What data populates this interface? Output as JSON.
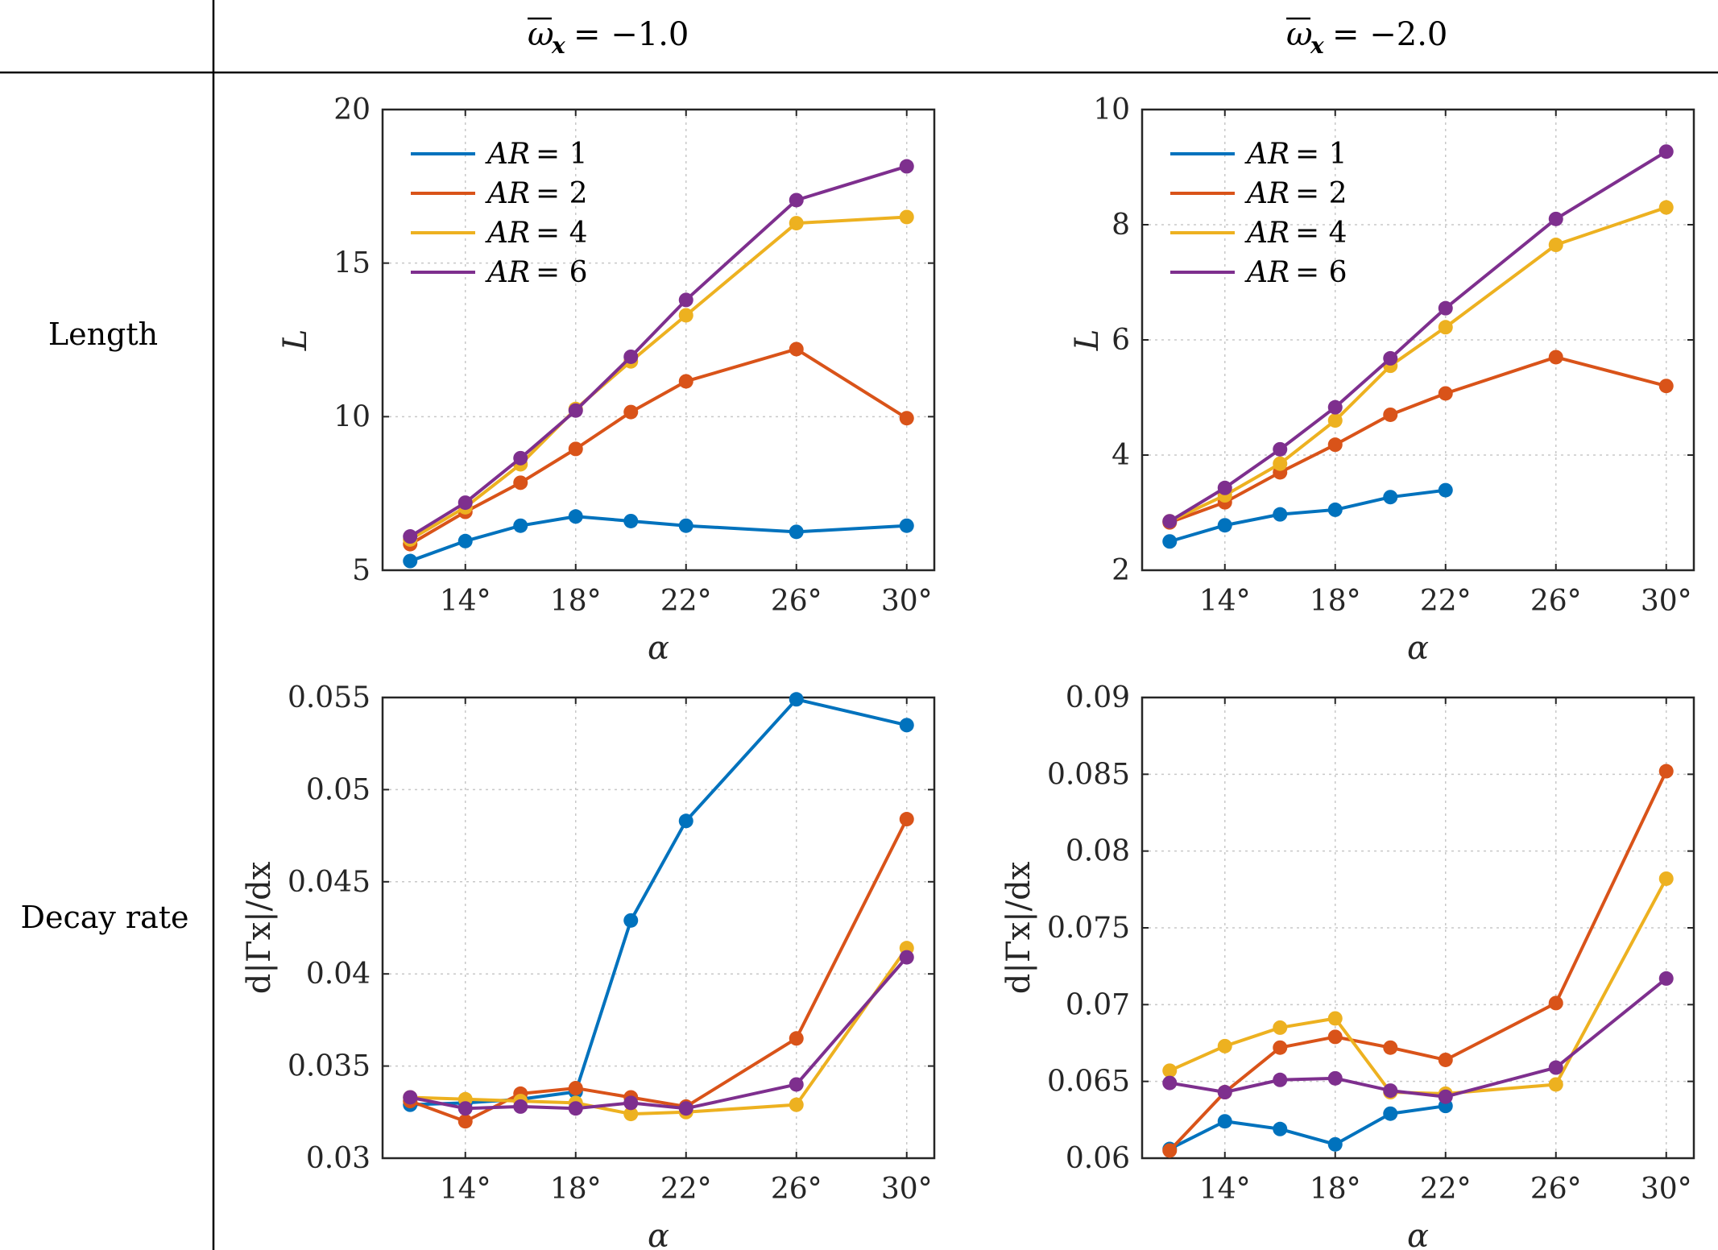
{
  "table": {
    "col_headers": [
      {
        "omega_symbol": "ω",
        "subscript": "x",
        "eq_value": "= −1.0"
      },
      {
        "omega_symbol": "ω",
        "subscript": "x",
        "eq_value": "= −2.0"
      }
    ],
    "row_headers": [
      "Length",
      "Decay rate"
    ]
  },
  "colors": {
    "AR = 1": "#0072BD",
    "AR = 2": "#D95319",
    "AR = 4": "#EDB120",
    "AR = 6": "#7E2F8E"
  },
  "chart_data": [
    {
      "id": "length_w1",
      "type": "line",
      "title": "",
      "xlabel": "α",
      "ylabel": "L",
      "xlim": [
        11,
        31
      ],
      "ylim": [
        5,
        20
      ],
      "xticks": [
        14,
        18,
        22,
        26,
        30
      ],
      "xtick_labels": [
        "14°",
        "18°",
        "22°",
        "26°",
        "30°"
      ],
      "yticks": [
        5,
        10,
        15,
        20
      ],
      "ytick_labels": [
        "5",
        "10",
        "15",
        "20"
      ],
      "legend": "top-left",
      "grid": true,
      "series": [
        {
          "name": "AR = 1",
          "label_lhs": "AR",
          "label_rhs": "= 1",
          "x": [
            12,
            14,
            16,
            18,
            20,
            22,
            26,
            30
          ],
          "values": [
            5.3,
            5.95,
            6.45,
            6.75,
            6.6,
            6.45,
            6.25,
            6.45
          ]
        },
        {
          "name": "AR = 2",
          "label_lhs": "AR",
          "label_rhs": "= 2",
          "x": [
            12,
            14,
            16,
            18,
            20,
            22,
            26,
            30
          ],
          "values": [
            5.85,
            6.9,
            7.85,
            8.95,
            10.15,
            11.15,
            12.2,
            9.95
          ]
        },
        {
          "name": "AR = 4",
          "label_lhs": "AR",
          "label_rhs": "= 4",
          "x": [
            12,
            14,
            16,
            18,
            20,
            22,
            26,
            30
          ],
          "values": [
            6.0,
            7.05,
            8.45,
            10.25,
            11.8,
            13.3,
            16.3,
            16.5
          ]
        },
        {
          "name": "AR = 6",
          "label_lhs": "AR",
          "label_rhs": "= 6",
          "x": [
            12,
            14,
            16,
            18,
            20,
            22,
            26,
            30
          ],
          "values": [
            6.1,
            7.2,
            8.65,
            10.2,
            11.95,
            13.8,
            17.05,
            18.15
          ]
        }
      ]
    },
    {
      "id": "length_w2",
      "type": "line",
      "title": "",
      "xlabel": "α",
      "ylabel": "L",
      "xlim": [
        11,
        31
      ],
      "ylim": [
        2,
        10
      ],
      "xticks": [
        14,
        18,
        22,
        26,
        30
      ],
      "xtick_labels": [
        "14°",
        "18°",
        "22°",
        "26°",
        "30°"
      ],
      "yticks": [
        2,
        4,
        6,
        8,
        10
      ],
      "ytick_labels": [
        "2",
        "4",
        "6",
        "8",
        "10"
      ],
      "legend": "top-left",
      "grid": true,
      "series": [
        {
          "name": "AR = 1",
          "label_lhs": "AR",
          "label_rhs": "= 1",
          "x": [
            12,
            14,
            16,
            18,
            20,
            22
          ],
          "values": [
            2.5,
            2.78,
            2.97,
            3.05,
            3.27,
            3.39
          ]
        },
        {
          "name": "AR = 2",
          "label_lhs": "AR",
          "label_rhs": "= 2",
          "x": [
            12,
            14,
            16,
            18,
            20,
            22,
            26,
            30
          ],
          "values": [
            2.83,
            3.18,
            3.7,
            4.18,
            4.7,
            5.07,
            5.7,
            5.2
          ]
        },
        {
          "name": "AR = 4",
          "label_lhs": "AR",
          "label_rhs": "= 4",
          "x": [
            12,
            14,
            16,
            18,
            20,
            22,
            26,
            30
          ],
          "values": [
            2.85,
            3.3,
            3.85,
            4.6,
            5.55,
            6.22,
            7.65,
            8.3
          ]
        },
        {
          "name": "AR = 6",
          "label_lhs": "AR",
          "label_rhs": "= 6",
          "x": [
            12,
            14,
            16,
            18,
            20,
            22,
            26,
            30
          ],
          "values": [
            2.85,
            3.43,
            4.1,
            4.83,
            5.68,
            6.55,
            8.1,
            9.27
          ]
        }
      ]
    },
    {
      "id": "decay_w1",
      "type": "line",
      "title": "",
      "xlabel": "α",
      "ylabel": "d|Γx|/dx",
      "xlim": [
        11,
        31
      ],
      "ylim": [
        0.03,
        0.055
      ],
      "xticks": [
        14,
        18,
        22,
        26,
        30
      ],
      "xtick_labels": [
        "14°",
        "18°",
        "22°",
        "26°",
        "30°"
      ],
      "yticks": [
        0.03,
        0.035,
        0.04,
        0.045,
        0.05,
        0.055
      ],
      "ytick_labels": [
        "0.03",
        "0.035",
        "0.04",
        "0.045",
        "0.05",
        "0.055"
      ],
      "grid": true,
      "series": [
        {
          "name": "AR = 1",
          "x": [
            12,
            14,
            16,
            18,
            20,
            22,
            26,
            30
          ],
          "values": [
            0.0329,
            0.033,
            0.0332,
            0.0336,
            0.0429,
            0.0483,
            0.0549,
            0.0535
          ]
        },
        {
          "name": "AR = 2",
          "x": [
            12,
            14,
            16,
            18,
            20,
            22,
            26,
            30
          ],
          "values": [
            0.0331,
            0.032,
            0.0335,
            0.0338,
            0.0333,
            0.0328,
            0.0365,
            0.0484
          ]
        },
        {
          "name": "AR = 4",
          "x": [
            12,
            14,
            16,
            18,
            20,
            22,
            26,
            30
          ],
          "values": [
            0.0333,
            0.0332,
            0.0331,
            0.033,
            0.0324,
            0.0325,
            0.0329,
            0.0414
          ]
        },
        {
          "name": "AR = 6",
          "x": [
            12,
            14,
            16,
            18,
            20,
            22,
            26,
            30
          ],
          "values": [
            0.0333,
            0.0327,
            0.0328,
            0.0327,
            0.033,
            0.0327,
            0.034,
            0.0409
          ]
        }
      ]
    },
    {
      "id": "decay_w2",
      "type": "line",
      "title": "",
      "xlabel": "α",
      "ylabel": "d|Γx|/dx",
      "xlim": [
        11,
        31
      ],
      "ylim": [
        0.06,
        0.09
      ],
      "xticks": [
        14,
        18,
        22,
        26,
        30
      ],
      "xtick_labels": [
        "14°",
        "18°",
        "22°",
        "26°",
        "30°"
      ],
      "yticks": [
        0.06,
        0.065,
        0.07,
        0.075,
        0.08,
        0.085,
        0.09
      ],
      "ytick_labels": [
        "0.06",
        "0.065",
        "0.07",
        "0.075",
        "0.08",
        "0.085",
        "0.09"
      ],
      "grid": true,
      "series": [
        {
          "name": "AR = 1",
          "x": [
            12,
            14,
            16,
            18,
            20,
            22
          ],
          "values": [
            0.0606,
            0.0624,
            0.0619,
            0.0609,
            0.0629,
            0.0634
          ]
        },
        {
          "name": "AR = 2",
          "x": [
            12,
            14,
            16,
            18,
            20,
            22,
            26,
            30
          ],
          "values": [
            0.0605,
            0.0643,
            0.0672,
            0.0679,
            0.0672,
            0.0664,
            0.0701,
            0.0852
          ]
        },
        {
          "name": "AR = 4",
          "x": [
            12,
            14,
            16,
            18,
            20,
            22,
            26,
            30
          ],
          "values": [
            0.0657,
            0.0673,
            0.0685,
            0.0691,
            0.0643,
            0.0642,
            0.0648,
            0.0782
          ]
        },
        {
          "name": "AR = 6",
          "x": [
            12,
            14,
            16,
            18,
            20,
            22,
            26,
            30
          ],
          "values": [
            0.0649,
            0.0643,
            0.0651,
            0.0652,
            0.0644,
            0.064,
            0.0659,
            0.0717
          ]
        }
      ]
    }
  ]
}
